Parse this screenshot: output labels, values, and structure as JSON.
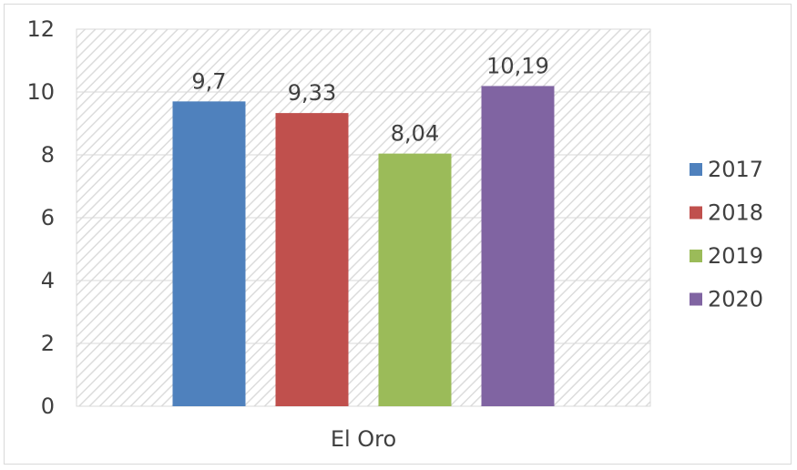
{
  "chart_data": {
    "type": "bar",
    "categories": [
      "El Oro"
    ],
    "series": [
      {
        "name": "2017",
        "values": [
          9.7
        ],
        "label": "9,7",
        "color": "#4f81bd"
      },
      {
        "name": "2018",
        "values": [
          9.33
        ],
        "label": "9,33",
        "color": "#c0504d"
      },
      {
        "name": "2019",
        "values": [
          8.04
        ],
        "label": "8,04",
        "color": "#9bbb59"
      },
      {
        "name": "2020",
        "values": [
          10.19
        ],
        "label": "10,19",
        "color": "#8064a2"
      }
    ],
    "ylim": [
      0,
      12
    ],
    "yticks": [
      "0",
      "2",
      "4",
      "6",
      "8",
      "10",
      "12"
    ],
    "grid": true,
    "legend_position": "right",
    "plot_background": "hatched"
  }
}
